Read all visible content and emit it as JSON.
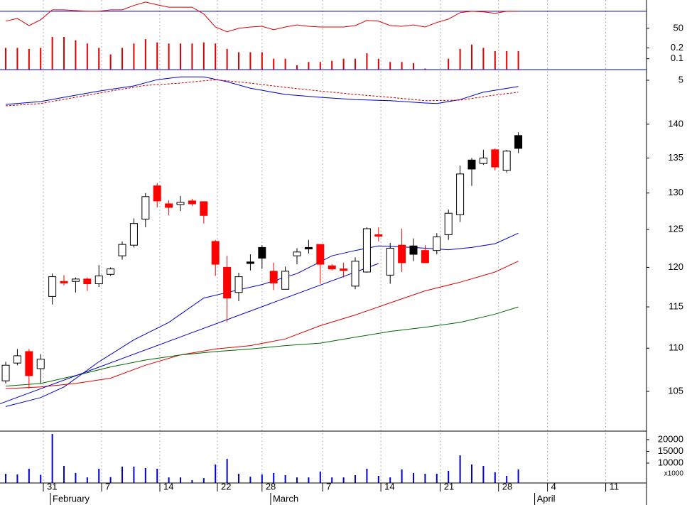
{
  "chart_data": [
    {
      "type": "line",
      "xlim": [
        -0.49,
        55
      ],
      "ylim": [
        -71,
        133
      ],
      "yticks": [
        50
      ],
      "reference_line": {
        "value": 100,
        "color": "#0000cc"
      },
      "series": [
        {
          "color": "#dd0000",
          "x": [
            0,
            1,
            2,
            3,
            4,
            5,
            6,
            7,
            8,
            9,
            10,
            11,
            12,
            13,
            14,
            15,
            16,
            17,
            18,
            19,
            20,
            21,
            22,
            23,
            24,
            25,
            26,
            27,
            28,
            29,
            30,
            31,
            32,
            33,
            34,
            35,
            36,
            37,
            38,
            39,
            40,
            41,
            42,
            43,
            44
          ],
          "values": [
            71,
            79,
            58,
            75,
            104,
            104,
            102,
            100,
            100,
            104,
            104,
            117,
            127,
            119,
            112,
            112,
            112,
            92,
            54,
            40,
            50,
            54,
            56,
            46,
            54,
            60,
            56,
            54,
            54,
            54,
            58,
            73,
            71,
            58,
            56,
            60,
            54,
            67,
            77,
            96,
            100,
            98,
            94,
            100,
            100
          ]
        }
      ]
    },
    {
      "type": "bar",
      "xlim": [
        -0.49,
        55
      ],
      "ylim": [
        0,
        0.64
      ],
      "yticks": [
        0.1,
        0.2
      ],
      "color": "#dd0000",
      "x": [
        0,
        1,
        2,
        3,
        4,
        5,
        6,
        7,
        8,
        9,
        10,
        11,
        12,
        13,
        14,
        15,
        16,
        17,
        18,
        19,
        20,
        21,
        22,
        23,
        24,
        25,
        26,
        27,
        28,
        29,
        30,
        31,
        32,
        33,
        34,
        35,
        36,
        37,
        38,
        39,
        40,
        41,
        42,
        43,
        44
      ],
      "values": [
        0.2,
        0.2,
        0.19,
        0.2,
        0.3,
        0.3,
        0.27,
        0.24,
        0.2,
        0.14,
        0.2,
        0.24,
        0.28,
        0.25,
        0.24,
        0.24,
        0.24,
        0.25,
        0.24,
        0.19,
        0.16,
        0.16,
        0.16,
        0.1,
        0.1,
        0.04,
        0.07,
        0.07,
        0.08,
        0.1,
        0.1,
        0.15,
        0.1,
        0.07,
        0.07,
        0.06,
        0.01,
        0,
        0.1,
        0.19,
        0.23,
        0.2,
        0.17,
        0.17,
        0.17
      ]
    },
    {
      "type": "line",
      "xlim": [
        -0.49,
        55
      ],
      "ylim": [
        -0.875,
        6.875
      ],
      "yticks": [
        5
      ],
      "series": [
        {
          "color": "#0000cc",
          "x": [
            0,
            3,
            5,
            8,
            11,
            13,
            15,
            17,
            19,
            21,
            24,
            27,
            30,
            33,
            36,
            37,
            39,
            41,
            44
          ],
          "values": [
            0.75,
            1.25,
            2.0,
            3.1,
            4.0,
            5.1,
            5.6,
            5.6,
            4.75,
            3.6,
            2.5,
            2.0,
            1.6,
            1.4,
            1.0,
            0.9,
            1.6,
            2.9,
            3.9
          ]
        },
        {
          "color": "#cc0000",
          "dash": true,
          "x": [
            0,
            3,
            6,
            9,
            12,
            15,
            18,
            21,
            24,
            27,
            30,
            33,
            36,
            39,
            42,
            44
          ],
          "values": [
            0.5,
            0.9,
            2.0,
            3.1,
            4.1,
            4.5,
            5.1,
            4.5,
            3.75,
            3.1,
            2.5,
            2.0,
            1.4,
            1.5,
            2.4,
            2.9
          ]
        }
      ]
    },
    {
      "type": "candlestick",
      "log_scale": true,
      "xlim": [
        -0.49,
        55
      ],
      "ylim": [
        100.6,
        141.6
      ],
      "yticks": [
        105,
        110,
        115,
        120,
        125,
        130,
        135,
        140
      ],
      "x": [
        0,
        1,
        2,
        3,
        4,
        5,
        6,
        7,
        8,
        9,
        10,
        11,
        12,
        13,
        14,
        15,
        16,
        17,
        18,
        19,
        20,
        21,
        22,
        23,
        24,
        25,
        26,
        27,
        28,
        29,
        30,
        31,
        32,
        33,
        34,
        35,
        36,
        37,
        38,
        39,
        40,
        41,
        42,
        43,
        44
      ],
      "open": [
        106.2,
        108.25,
        109.6,
        107.6,
        116.3,
        118.2,
        118.2,
        118.5,
        117.9,
        119.1,
        121.5,
        122.9,
        126.4,
        131.0,
        128.5,
        128.4,
        128.9,
        128.8,
        123.4,
        120.0,
        116.8,
        120.7,
        122.6,
        119.5,
        117.2,
        121.5,
        122.4,
        123.0,
        120.2,
        119.8,
        117.6,
        119.4,
        124.3,
        119.0,
        122.9,
        122.8,
        122.2,
        122.2,
        124.3,
        127.0,
        134.7,
        134.2,
        136.2,
        133.2,
        138.3
      ],
      "high": [
        108.4,
        109.9,
        109.9,
        109.3,
        119.2,
        119.0,
        118.7,
        118.7,
        120.3,
        120.0,
        123.4,
        126.5,
        130.0,
        131.4,
        129.0,
        129.6,
        129.2,
        128.8,
        123.6,
        121.5,
        119.3,
        121.7,
        122.9,
        120.6,
        120.1,
        122.5,
        123.6,
        123.0,
        120.4,
        120.6,
        121.3,
        125.3,
        125.3,
        123.2,
        125.1,
        123.8,
        122.9,
        124.5,
        127.7,
        133.9,
        135.0,
        136.2,
        136.4,
        136.2,
        138.8
      ],
      "low": [
        105.9,
        108.0,
        105.3,
        105.9,
        115.3,
        117.7,
        116.8,
        117.0,
        117.5,
        118.9,
        121.0,
        122.6,
        125.3,
        128.0,
        126.9,
        127.5,
        128.2,
        125.8,
        118.9,
        113.1,
        115.7,
        119.6,
        119.8,
        117.1,
        117.2,
        120.4,
        121.8,
        117.9,
        119.6,
        118.7,
        117.2,
        119.3,
        123.4,
        117.9,
        119.4,
        120.8,
        120.6,
        121.7,
        123.6,
        126.0,
        131.0,
        134.0,
        133.2,
        132.9,
        135.7
      ],
      "close": [
        108.0,
        109.1,
        106.8,
        108.7,
        118.8,
        118.0,
        118.5,
        117.9,
        118.9,
        119.8,
        123.0,
        125.8,
        129.5,
        128.9,
        128.0,
        128.7,
        128.5,
        126.9,
        120.4,
        116.1,
        118.8,
        120.5,
        121.2,
        118.0,
        119.5,
        122.0,
        122.6,
        120.4,
        119.8,
        119.6,
        120.8,
        125.1,
        124.1,
        122.5,
        120.6,
        121.7,
        120.6,
        124.0,
        127.2,
        132.7,
        133.4,
        135.0,
        133.7,
        136.0,
        136.4
      ],
      "colors": [
        "#ffffff",
        "#ffffff",
        "#ff0000",
        "#ffffff",
        "#ffffff",
        "#ff0000",
        "#ffffff",
        "#ff0000",
        "#ffffff",
        "#ffffff",
        "#ffffff",
        "#ffffff",
        "#ffffff",
        "#ff0000",
        "#ff0000",
        "#ffffff",
        "#ff0000",
        "#ff0000",
        "#ff0000",
        "#ff0000",
        "#ffffff",
        "#000000",
        "#000000",
        "#ff0000",
        "#ffffff",
        "#ffffff",
        "#000000",
        "#ff0000",
        "#ff0000",
        "#ff0000",
        "#ffffff",
        "#ffffff",
        "#ff0000",
        "#ffffff",
        "#ff0000",
        "#000000",
        "#ff0000",
        "#ffffff",
        "#ffffff",
        "#ffffff",
        "#000000",
        "#ffffff",
        "#ff0000",
        "#ffffff",
        "#000000"
      ],
      "series": [
        {
          "color": "#0000cc",
          "x": [
            0,
            3,
            5,
            8,
            11,
            14,
            17,
            19,
            22,
            25,
            28,
            30,
            32,
            35,
            38,
            40,
            42,
            44
          ],
          "values": [
            103.3,
            104.3,
            105.5,
            108.4,
            111.0,
            113.1,
            116.1,
            116.8,
            117.8,
            119.2,
            121.5,
            122.2,
            122.8,
            122.6,
            122.3,
            122.6,
            123.1,
            124.5
          ]
        },
        {
          "color": "#dd0000",
          "x": [
            0,
            3,
            6,
            9,
            12,
            15,
            18,
            21,
            24,
            27,
            30,
            33,
            36,
            39,
            42,
            44
          ],
          "values": [
            105.3,
            105.5,
            105.9,
            106.5,
            108.0,
            109.2,
            109.9,
            110.3,
            111.1,
            112.7,
            114.0,
            115.5,
            117.0,
            118.1,
            119.4,
            120.8
          ]
        },
        {
          "color": "#006600",
          "x": [
            0,
            3,
            6,
            9,
            12,
            15,
            18,
            21,
            24,
            27,
            30,
            33,
            36,
            39,
            42,
            44
          ],
          "values": [
            105.6,
            105.9,
            106.8,
            107.8,
            108.6,
            109.2,
            109.6,
            109.9,
            110.3,
            110.6,
            111.3,
            112.0,
            112.5,
            113.1,
            114.1,
            115.0
          ]
        },
        {
          "color": "#0000cc",
          "x": [
            -0.5,
            32
          ],
          "values": [
            103.6,
            120.5
          ]
        }
      ]
    },
    {
      "type": "bar",
      "xlim": [
        -0.49,
        55
      ],
      "ylim": [
        0,
        23636
      ],
      "yticks": [
        10000,
        15000,
        20000
      ],
      "color": "#0000cc",
      "unit_label": "x1000",
      "x": [
        0,
        1,
        2,
        3,
        4,
        5,
        6,
        7,
        8,
        9,
        10,
        11,
        12,
        13,
        14,
        15,
        16,
        17,
        18,
        19,
        20,
        21,
        22,
        23,
        24,
        25,
        26,
        27,
        28,
        29,
        30,
        31,
        32,
        33,
        34,
        35,
        36,
        37,
        38,
        39,
        40,
        41,
        42,
        43,
        44
      ],
      "values": [
        5450,
        5150,
        7600,
        5000,
        22400,
        8800,
        5800,
        3900,
        7600,
        4000,
        8500,
        8500,
        7900,
        7600,
        3900,
        3900,
        2700,
        3600,
        9400,
        11800,
        5450,
        4200,
        5150,
        5800,
        4850,
        3900,
        3900,
        6400,
        3900,
        3900,
        4850,
        7600,
        4550,
        3900,
        7300,
        5800,
        5450,
        5450,
        6700,
        13300,
        9400,
        8800,
        6100,
        4550,
        7300
      ],
      "xticks": [
        {
          "value": 3.23,
          "label": "31"
        },
        {
          "value": 8.23,
          "label": "7"
        },
        {
          "value": 13.23,
          "label": "14"
        },
        {
          "value": 18.17,
          "label": "22"
        },
        {
          "value": 22.0,
          "label": "28"
        },
        {
          "value": 27.2,
          "label": "7"
        },
        {
          "value": 32.2,
          "label": "14"
        },
        {
          "value": 37.3,
          "label": "21"
        },
        {
          "value": 42.3,
          "label": "28"
        },
        {
          "value": 46.5,
          "label": "4"
        },
        {
          "value": 51.5,
          "label": "11"
        }
      ],
      "months": [
        {
          "value": 3.84,
          "label": "February"
        },
        {
          "value": 22.74,
          "label": "March"
        },
        {
          "value": 45.4,
          "label": "April"
        }
      ]
    }
  ]
}
